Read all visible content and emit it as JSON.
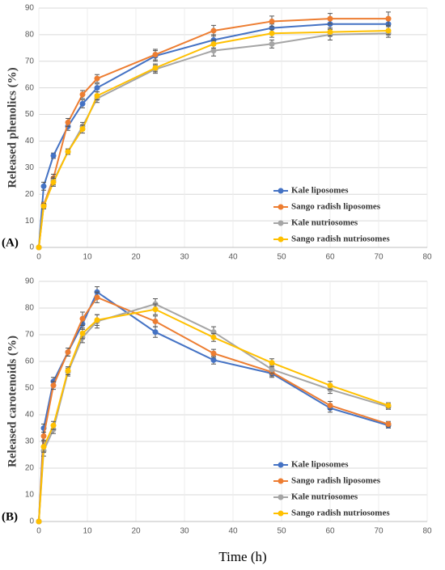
{
  "chart_data": [
    {
      "type": "line",
      "panel_label": "(A)",
      "ylabel": "Released phenolics (%)",
      "x": [
        0,
        1,
        3,
        6,
        9,
        12,
        24,
        36,
        48,
        60,
        72
      ],
      "series": [
        {
          "name": "Kale liposomes",
          "color": "#4472c4",
          "values": [
            0,
            23,
            34.5,
            45.5,
            54,
            60,
            72,
            78,
            82.5,
            84,
            84
          ],
          "errors": [
            0,
            1.5,
            1,
            1.5,
            1.5,
            1.5,
            2,
            2,
            1.5,
            2,
            2
          ]
        },
        {
          "name": "Sango radish liposomes",
          "color": "#ed7d31",
          "values": [
            0,
            16,
            26,
            47,
            57.5,
            63.5,
            72.5,
            81.5,
            85,
            86,
            86
          ],
          "errors": [
            0,
            1,
            1.5,
            1.5,
            1.5,
            1.5,
            2,
            2,
            2,
            2,
            2.5
          ]
        },
        {
          "name": "Kale nutriosomes",
          "color": "#a5a5a5",
          "values": [
            0,
            15.5,
            25,
            36,
            45.5,
            56,
            67,
            74,
            76.5,
            80,
            80.5
          ],
          "errors": [
            0,
            1,
            1.5,
            1,
            1.5,
            1.5,
            1.5,
            2,
            1.5,
            2,
            1.5
          ]
        },
        {
          "name": "Sango radish nutriosomes",
          "color": "#ffc000",
          "values": [
            0,
            15.5,
            24.5,
            36,
            44.5,
            57,
            67.5,
            76.5,
            80.5,
            81,
            81.5
          ],
          "errors": [
            0,
            1,
            1.5,
            1,
            1.5,
            1.5,
            1.5,
            1.5,
            1.5,
            1.5,
            1.5
          ]
        }
      ],
      "xlim": [
        0,
        80
      ],
      "ylim": [
        0,
        90
      ],
      "xticks": [
        0,
        10,
        20,
        30,
        40,
        50,
        60,
        70,
        80
      ],
      "yticks": [
        0,
        10,
        20,
        30,
        40,
        50,
        60,
        70,
        80,
        90
      ],
      "grid": true
    },
    {
      "type": "line",
      "panel_label": "(B)",
      "ylabel": "Released carotenoids (%)",
      "xlabel": "Time (h)",
      "x": [
        0,
        1,
        3,
        6,
        9,
        12,
        24,
        36,
        48,
        60,
        72
      ],
      "series": [
        {
          "name": "Kale liposomes",
          "color": "#4472c4",
          "values": [
            0,
            35,
            52.5,
            63.5,
            74,
            86,
            71,
            60.5,
            55.5,
            42.5,
            36
          ],
          "errors": [
            0,
            1.5,
            1.5,
            1.5,
            2,
            2,
            2,
            1.5,
            1.5,
            1.5,
            1
          ]
        },
        {
          "name": "Sango radish liposomes",
          "color": "#ed7d31",
          "values": [
            0,
            32,
            51,
            63.5,
            76,
            84,
            75,
            63,
            56,
            43.5,
            36.5
          ],
          "errors": [
            0,
            1.5,
            1.5,
            1.5,
            2.5,
            2,
            2,
            1.5,
            1.5,
            1.5,
            1
          ]
        },
        {
          "name": "Kale nutriosomes",
          "color": "#a5a5a5",
          "values": [
            0,
            26.5,
            34.5,
            56,
            69,
            75,
            81.5,
            71,
            57,
            49.5,
            43
          ],
          "errors": [
            0,
            2,
            1.5,
            1.5,
            2,
            2.5,
            2,
            2,
            1.5,
            1.5,
            1
          ]
        },
        {
          "name": "Sango radish nutriosomes",
          "color": "#ffc000",
          "values": [
            0,
            28,
            36,
            56.5,
            70.5,
            75.5,
            79.5,
            69,
            59.5,
            51,
            43.5
          ],
          "errors": [
            0,
            2,
            1.5,
            1.5,
            2,
            2,
            2,
            1.5,
            1.5,
            1.5,
            1
          ]
        }
      ],
      "xlim": [
        0,
        80
      ],
      "ylim": [
        0,
        90
      ],
      "xticks": [
        0,
        10,
        20,
        30,
        40,
        50,
        60,
        70,
        80
      ],
      "yticks": [
        0,
        10,
        20,
        30,
        40,
        50,
        60,
        70,
        80,
        90
      ],
      "grid": true
    }
  ]
}
